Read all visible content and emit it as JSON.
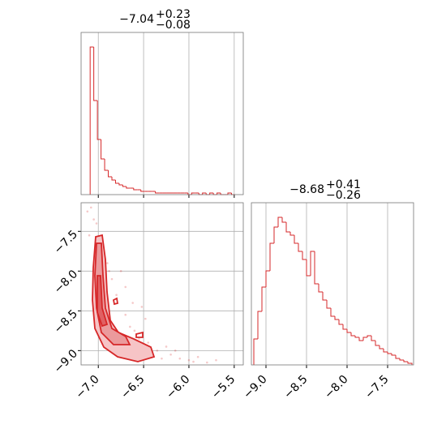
{
  "chart_data": [
    {
      "type": "histogram",
      "title": "−7.04",
      "title_upper": "+0.23",
      "title_lower": "−0.08",
      "color": "#d62728",
      "bins": [
        -7.09,
        -7.05,
        -7.01,
        -6.97,
        -6.93,
        -6.89,
        -6.85,
        -6.81,
        -6.77,
        -6.73,
        -6.69,
        -6.65,
        -6.61,
        -6.57,
        -6.53,
        -6.49,
        -6.45,
        -6.41,
        -6.37,
        -6.33,
        -6.29,
        -6.25,
        -6.21,
        -6.17,
        -6.13,
        -6.09,
        -6.05,
        -6.01,
        -5.97,
        -5.93,
        -5.89,
        -5.85,
        -5.81,
        -5.77,
        -5.73,
        -5.69,
        -5.65,
        -5.61,
        -5.57,
        -5.53,
        -5.49
      ],
      "counts": [
        91,
        58,
        34,
        22,
        15,
        11,
        9,
        7,
        6,
        5,
        4,
        4,
        3,
        3,
        2,
        2,
        2,
        2,
        1,
        1,
        1,
        1,
        1,
        1,
        1,
        1,
        1,
        0,
        1,
        1,
        0,
        1,
        0,
        1,
        0,
        1,
        0,
        0,
        1,
        0
      ],
      "xlim": [
        -7.19,
        -5.4
      ],
      "ylim": [
        0,
        100
      ],
      "xticks": [
        -7.0,
        -6.5,
        -6.0,
        -5.5
      ],
      "tick_labels": false,
      "grid": true
    },
    {
      "type": "scatter",
      "color": "#d62728",
      "x": [
        -7.08,
        -7.05,
        -7.1,
        -6.95,
        -6.9,
        -6.85,
        -6.8,
        -6.7,
        -6.65,
        -6.6,
        -6.55,
        -6.5,
        -6.45,
        -6.4,
        -6.35,
        -6.3,
        -6.2,
        -6.1,
        -6.0,
        -5.9,
        -5.8,
        -5.7,
        -7.02,
        -6.98,
        -6.75,
        -6.62,
        -6.48,
        -6.25,
        -6.15,
        -5.95,
        -7.12,
        -7.0,
        -6.88,
        -6.7,
        -6.52
      ],
      "y": [
        -7.2,
        -7.35,
        -7.55,
        -7.7,
        -7.9,
        -8.1,
        -8.3,
        -8.55,
        -8.7,
        -8.75,
        -8.85,
        -8.95,
        -8.9,
        -9.05,
        -9.0,
        -9.1,
        -9.05,
        -9.1,
        -9.12,
        -9.08,
        -9.15,
        -9.12,
        -7.4,
        -7.6,
        -8.0,
        -8.4,
        -8.6,
        -8.95,
        -9.0,
        -9.14,
        -7.25,
        -7.8,
        -8.0,
        -8.2,
        -8.45
      ],
      "xlim": [
        -7.19,
        -5.4
      ],
      "ylim": [
        -9.18,
        -7.14
      ],
      "xticks": [
        {
          "value": -7.0,
          "label": "−7.0"
        },
        {
          "value": -6.5,
          "label": "−6.5"
        },
        {
          "value": -6.0,
          "label": "−6.0"
        },
        {
          "value": -5.5,
          "label": "−5.5"
        }
      ],
      "yticks": [
        {
          "value": -7.5,
          "label": "−7.5"
        },
        {
          "value": -8.0,
          "label": "−8.0"
        },
        {
          "value": -8.5,
          "label": "−8.5"
        },
        {
          "value": -9.0,
          "label": "−9.0"
        }
      ],
      "grid": true
    },
    {
      "type": "histogram",
      "title": "−8.68",
      "title_upper": "+0.41",
      "title_lower": "−0.26",
      "color": "#d62728",
      "bins": [
        -9.15,
        -9.1,
        -9.05,
        -9.0,
        -8.95,
        -8.9,
        -8.85,
        -8.8,
        -8.75,
        -8.7,
        -8.65,
        -8.6,
        -8.55,
        -8.5,
        -8.45,
        -8.4,
        -8.35,
        -8.3,
        -8.25,
        -8.2,
        -8.15,
        -8.1,
        -8.05,
        -8.0,
        -7.95,
        -7.9,
        -7.85,
        -7.8,
        -7.75,
        -7.7,
        -7.65,
        -7.6,
        -7.55,
        -7.5,
        -7.45,
        -7.4,
        -7.35,
        -7.3,
        -7.25,
        -7.2
      ],
      "counts": [
        16,
        33,
        48,
        58,
        75,
        85,
        91,
        88,
        82,
        80,
        75,
        70,
        65,
        55,
        70,
        50,
        45,
        40,
        35,
        30,
        28,
        25,
        22,
        20,
        18,
        17,
        15,
        17,
        18,
        15,
        12,
        10,
        8,
        7,
        6,
        4,
        3,
        2,
        1
      ],
      "xlim": [
        -9.18,
        -7.18
      ],
      "ylim": [
        0,
        100
      ],
      "xticks": [
        {
          "value": -9.0,
          "label": "−9.0"
        },
        {
          "value": -8.5,
          "label": "−8.5"
        },
        {
          "value": -8.0,
          "label": "−8.0"
        },
        {
          "value": -7.5,
          "label": "−7.5"
        }
      ],
      "tick_labels": true,
      "grid": true
    }
  ]
}
